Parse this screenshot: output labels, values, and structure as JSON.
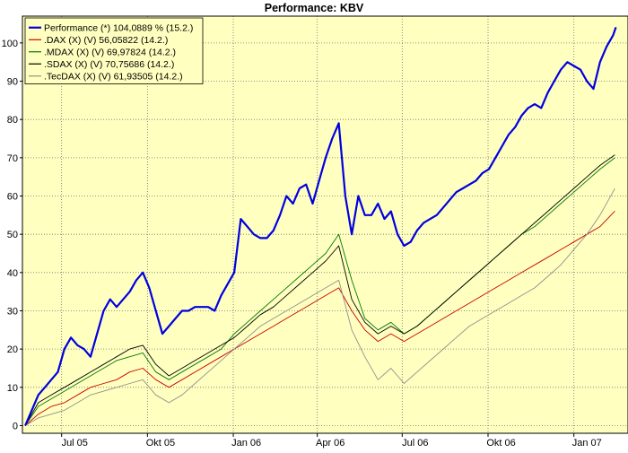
{
  "chart_data": {
    "type": "line",
    "title": "Performance: KBV",
    "xlabel": "",
    "ylabel": "",
    "x_ticks": [
      "Jul 05",
      "Okt 05",
      "Jan 06",
      "Apr 06",
      "Jul 06",
      "Okt 06",
      "Jan 07"
    ],
    "y_ticks": [
      0,
      10,
      20,
      30,
      40,
      50,
      60,
      70,
      80,
      90,
      100
    ],
    "ylim": [
      -2,
      107
    ],
    "x_domain": [
      "2005-05-20",
      "2007-02-28"
    ],
    "grid": true,
    "legend_position": "top-left",
    "colors": {
      "plot_bg": "#ffffc0",
      "grid": "#707070",
      "axis": "#000000"
    },
    "series": [
      {
        "name": "Performance (*) 104,0889 % (15.2.)",
        "color": "#0000e0",
        "width": 2.2,
        "points": [
          [
            "2005-05-23",
            0
          ],
          [
            "2005-05-30",
            4
          ],
          [
            "2005-06-06",
            8
          ],
          [
            "2005-06-13",
            10
          ],
          [
            "2005-06-20",
            12
          ],
          [
            "2005-06-27",
            14
          ],
          [
            "2005-07-04",
            20
          ],
          [
            "2005-07-11",
            23
          ],
          [
            "2005-07-18",
            21
          ],
          [
            "2005-07-25",
            20
          ],
          [
            "2005-08-01",
            18
          ],
          [
            "2005-08-08",
            24
          ],
          [
            "2005-08-15",
            30
          ],
          [
            "2005-08-22",
            33
          ],
          [
            "2005-08-29",
            31
          ],
          [
            "2005-09-05",
            33
          ],
          [
            "2005-09-12",
            35
          ],
          [
            "2005-09-19",
            38
          ],
          [
            "2005-09-26",
            40
          ],
          [
            "2005-10-03",
            36
          ],
          [
            "2005-10-10",
            30
          ],
          [
            "2005-10-17",
            24
          ],
          [
            "2005-10-24",
            26
          ],
          [
            "2005-10-31",
            28
          ],
          [
            "2005-11-07",
            30
          ],
          [
            "2005-11-14",
            30
          ],
          [
            "2005-11-21",
            31
          ],
          [
            "2005-11-28",
            31
          ],
          [
            "2005-12-05",
            31
          ],
          [
            "2005-12-12",
            30
          ],
          [
            "2005-12-19",
            34
          ],
          [
            "2005-12-26",
            37
          ],
          [
            "2006-01-02",
            40
          ],
          [
            "2006-01-09",
            54
          ],
          [
            "2006-01-16",
            52
          ],
          [
            "2006-01-23",
            50
          ],
          [
            "2006-01-30",
            49
          ],
          [
            "2006-02-06",
            49
          ],
          [
            "2006-02-13",
            51
          ],
          [
            "2006-02-20",
            55
          ],
          [
            "2006-02-27",
            60
          ],
          [
            "2006-03-06",
            58
          ],
          [
            "2006-03-13",
            62
          ],
          [
            "2006-03-20",
            63
          ],
          [
            "2006-03-27",
            58
          ],
          [
            "2006-04-03",
            64
          ],
          [
            "2006-04-10",
            70
          ],
          [
            "2006-04-17",
            75
          ],
          [
            "2006-04-24",
            79
          ],
          [
            "2006-05-01",
            60
          ],
          [
            "2006-05-08",
            50
          ],
          [
            "2006-05-15",
            60
          ],
          [
            "2006-05-22",
            55
          ],
          [
            "2006-05-29",
            55
          ],
          [
            "2006-06-05",
            58
          ],
          [
            "2006-06-12",
            54
          ],
          [
            "2006-06-19",
            56
          ],
          [
            "2006-06-26",
            50
          ],
          [
            "2006-07-03",
            47
          ],
          [
            "2006-07-10",
            48
          ],
          [
            "2006-07-17",
            51
          ],
          [
            "2006-07-24",
            53
          ],
          [
            "2006-07-31",
            54
          ],
          [
            "2006-08-07",
            55
          ],
          [
            "2006-08-14",
            57
          ],
          [
            "2006-08-21",
            59
          ],
          [
            "2006-08-28",
            61
          ],
          [
            "2006-09-04",
            62
          ],
          [
            "2006-09-11",
            63
          ],
          [
            "2006-09-18",
            64
          ],
          [
            "2006-09-25",
            66
          ],
          [
            "2006-10-02",
            67
          ],
          [
            "2006-10-09",
            70
          ],
          [
            "2006-10-16",
            73
          ],
          [
            "2006-10-23",
            76
          ],
          [
            "2006-10-30",
            78
          ],
          [
            "2006-11-06",
            81
          ],
          [
            "2006-11-13",
            83
          ],
          [
            "2006-11-20",
            84
          ],
          [
            "2006-11-27",
            83
          ],
          [
            "2006-12-04",
            87
          ],
          [
            "2006-12-11",
            90
          ],
          [
            "2006-12-18",
            93
          ],
          [
            "2006-12-25",
            95
          ],
          [
            "2007-01-01",
            94
          ],
          [
            "2007-01-08",
            93
          ],
          [
            "2007-01-15",
            90
          ],
          [
            "2007-01-22",
            88
          ],
          [
            "2007-01-29",
            95
          ],
          [
            "2007-02-05",
            99
          ],
          [
            "2007-02-12",
            102
          ],
          [
            "2007-02-15",
            104.09
          ]
        ]
      },
      {
        "name": ".DAX (X) (V) 56,05822 (14.2.)",
        "color": "#cc0000",
        "width": 0.9,
        "points": [
          [
            "2005-05-23",
            0
          ],
          [
            "2005-06-06",
            3
          ],
          [
            "2005-06-20",
            5
          ],
          [
            "2005-07-04",
            6
          ],
          [
            "2005-07-18",
            8
          ],
          [
            "2005-08-01",
            10
          ],
          [
            "2005-08-15",
            11
          ],
          [
            "2005-08-29",
            12
          ],
          [
            "2005-09-12",
            14
          ],
          [
            "2005-09-26",
            15
          ],
          [
            "2005-10-10",
            12
          ],
          [
            "2005-10-24",
            10
          ],
          [
            "2005-11-07",
            12
          ],
          [
            "2005-11-21",
            14
          ],
          [
            "2005-12-05",
            16
          ],
          [
            "2005-12-19",
            18
          ],
          [
            "2006-01-02",
            20
          ],
          [
            "2006-01-16",
            22
          ],
          [
            "2006-01-30",
            24
          ],
          [
            "2006-02-13",
            26
          ],
          [
            "2006-02-27",
            28
          ],
          [
            "2006-03-13",
            30
          ],
          [
            "2006-03-27",
            32
          ],
          [
            "2006-04-10",
            34
          ],
          [
            "2006-04-24",
            36
          ],
          [
            "2006-05-08",
            30
          ],
          [
            "2006-05-22",
            25
          ],
          [
            "2006-06-05",
            22
          ],
          [
            "2006-06-19",
            24
          ],
          [
            "2006-07-03",
            22
          ],
          [
            "2006-07-17",
            24
          ],
          [
            "2006-07-31",
            26
          ],
          [
            "2006-08-14",
            28
          ],
          [
            "2006-08-28",
            30
          ],
          [
            "2006-09-11",
            32
          ],
          [
            "2006-09-25",
            34
          ],
          [
            "2006-10-09",
            36
          ],
          [
            "2006-10-23",
            38
          ],
          [
            "2006-11-06",
            40
          ],
          [
            "2006-11-20",
            42
          ],
          [
            "2006-12-04",
            44
          ],
          [
            "2006-12-18",
            46
          ],
          [
            "2007-01-01",
            48
          ],
          [
            "2007-01-15",
            50
          ],
          [
            "2007-01-29",
            52
          ],
          [
            "2007-02-14",
            56.06
          ]
        ]
      },
      {
        "name": ".MDAX (X) (V) 69,97824 (14.2.)",
        "color": "#007a00",
        "width": 0.9,
        "points": [
          [
            "2005-05-23",
            0
          ],
          [
            "2005-06-06",
            5
          ],
          [
            "2005-06-20",
            7
          ],
          [
            "2005-07-04",
            9
          ],
          [
            "2005-07-18",
            11
          ],
          [
            "2005-08-01",
            13
          ],
          [
            "2005-08-15",
            15
          ],
          [
            "2005-08-29",
            17
          ],
          [
            "2005-09-12",
            18
          ],
          [
            "2005-09-26",
            19
          ],
          [
            "2005-10-10",
            14
          ],
          [
            "2005-10-24",
            12
          ],
          [
            "2005-11-07",
            14
          ],
          [
            "2005-11-21",
            16
          ],
          [
            "2005-12-05",
            18
          ],
          [
            "2005-12-19",
            20
          ],
          [
            "2006-01-02",
            24
          ],
          [
            "2006-01-16",
            27
          ],
          [
            "2006-01-30",
            30
          ],
          [
            "2006-02-13",
            33
          ],
          [
            "2006-02-27",
            36
          ],
          [
            "2006-03-13",
            39
          ],
          [
            "2006-03-27",
            42
          ],
          [
            "2006-04-10",
            45
          ],
          [
            "2006-04-24",
            50
          ],
          [
            "2006-05-08",
            38
          ],
          [
            "2006-05-22",
            28
          ],
          [
            "2006-06-05",
            25
          ],
          [
            "2006-06-19",
            27
          ],
          [
            "2006-07-03",
            24
          ],
          [
            "2006-07-17",
            26
          ],
          [
            "2006-07-31",
            29
          ],
          [
            "2006-08-14",
            32
          ],
          [
            "2006-08-28",
            35
          ],
          [
            "2006-09-11",
            38
          ],
          [
            "2006-09-25",
            41
          ],
          [
            "2006-10-09",
            44
          ],
          [
            "2006-10-23",
            47
          ],
          [
            "2006-11-06",
            50
          ],
          [
            "2006-11-20",
            52
          ],
          [
            "2006-12-04",
            55
          ],
          [
            "2006-12-18",
            58
          ],
          [
            "2007-01-01",
            61
          ],
          [
            "2007-01-15",
            64
          ],
          [
            "2007-01-29",
            67
          ],
          [
            "2007-02-14",
            69.98
          ]
        ]
      },
      {
        "name": ".SDAX (X) (V) 70,75686 (14.2.)",
        "color": "#000000",
        "width": 0.9,
        "points": [
          [
            "2005-05-23",
            0
          ],
          [
            "2005-06-06",
            6
          ],
          [
            "2005-06-20",
            8
          ],
          [
            "2005-07-04",
            10
          ],
          [
            "2005-07-18",
            12
          ],
          [
            "2005-08-01",
            14
          ],
          [
            "2005-08-15",
            16
          ],
          [
            "2005-08-29",
            18
          ],
          [
            "2005-09-12",
            20
          ],
          [
            "2005-09-26",
            21
          ],
          [
            "2005-10-10",
            16
          ],
          [
            "2005-10-24",
            13
          ],
          [
            "2005-11-07",
            15
          ],
          [
            "2005-11-21",
            17
          ],
          [
            "2005-12-05",
            19
          ],
          [
            "2005-12-19",
            21
          ],
          [
            "2006-01-02",
            23
          ],
          [
            "2006-01-16",
            26
          ],
          [
            "2006-01-30",
            29
          ],
          [
            "2006-02-13",
            31
          ],
          [
            "2006-02-27",
            34
          ],
          [
            "2006-03-13",
            37
          ],
          [
            "2006-03-27",
            40
          ],
          [
            "2006-04-10",
            43
          ],
          [
            "2006-04-24",
            47
          ],
          [
            "2006-05-08",
            33
          ],
          [
            "2006-05-22",
            27
          ],
          [
            "2006-06-05",
            24
          ],
          [
            "2006-06-19",
            26
          ],
          [
            "2006-07-03",
            24
          ],
          [
            "2006-07-17",
            26
          ],
          [
            "2006-07-31",
            29
          ],
          [
            "2006-08-14",
            32
          ],
          [
            "2006-08-28",
            35
          ],
          [
            "2006-09-11",
            38
          ],
          [
            "2006-09-25",
            41
          ],
          [
            "2006-10-09",
            44
          ],
          [
            "2006-10-23",
            47
          ],
          [
            "2006-11-06",
            50
          ],
          [
            "2006-11-20",
            53
          ],
          [
            "2006-12-04",
            56
          ],
          [
            "2006-12-18",
            59
          ],
          [
            "2007-01-01",
            62
          ],
          [
            "2007-01-15",
            65
          ],
          [
            "2007-01-29",
            68
          ],
          [
            "2007-02-14",
            70.76
          ]
        ]
      },
      {
        "name": ".TecDAX (X) (V) 61,93505 (14.2.)",
        "color": "#909090",
        "width": 0.9,
        "points": [
          [
            "2005-05-23",
            0
          ],
          [
            "2005-06-06",
            2
          ],
          [
            "2005-06-20",
            3
          ],
          [
            "2005-07-04",
            4
          ],
          [
            "2005-07-18",
            6
          ],
          [
            "2005-08-01",
            8
          ],
          [
            "2005-08-15",
            9
          ],
          [
            "2005-08-29",
            10
          ],
          [
            "2005-09-12",
            11
          ],
          [
            "2005-09-26",
            12
          ],
          [
            "2005-10-10",
            8
          ],
          [
            "2005-10-24",
            6
          ],
          [
            "2005-11-07",
            8
          ],
          [
            "2005-11-21",
            11
          ],
          [
            "2005-12-05",
            14
          ],
          [
            "2005-12-19",
            17
          ],
          [
            "2006-01-02",
            20
          ],
          [
            "2006-01-16",
            23
          ],
          [
            "2006-01-30",
            26
          ],
          [
            "2006-02-13",
            28
          ],
          [
            "2006-02-27",
            30
          ],
          [
            "2006-03-13",
            32
          ],
          [
            "2006-03-27",
            34
          ],
          [
            "2006-04-10",
            36
          ],
          [
            "2006-04-24",
            38
          ],
          [
            "2006-05-08",
            25
          ],
          [
            "2006-05-22",
            18
          ],
          [
            "2006-06-05",
            12
          ],
          [
            "2006-06-19",
            15
          ],
          [
            "2006-07-03",
            11
          ],
          [
            "2006-07-17",
            14
          ],
          [
            "2006-07-31",
            17
          ],
          [
            "2006-08-14",
            20
          ],
          [
            "2006-08-28",
            23
          ],
          [
            "2006-09-11",
            26
          ],
          [
            "2006-09-25",
            28
          ],
          [
            "2006-10-09",
            30
          ],
          [
            "2006-10-23",
            32
          ],
          [
            "2006-11-06",
            34
          ],
          [
            "2006-11-20",
            36
          ],
          [
            "2006-12-04",
            39
          ],
          [
            "2006-12-18",
            42
          ],
          [
            "2007-01-01",
            46
          ],
          [
            "2007-01-15",
            50
          ],
          [
            "2007-01-29",
            55
          ],
          [
            "2007-02-14",
            61.94
          ]
        ]
      }
    ]
  }
}
